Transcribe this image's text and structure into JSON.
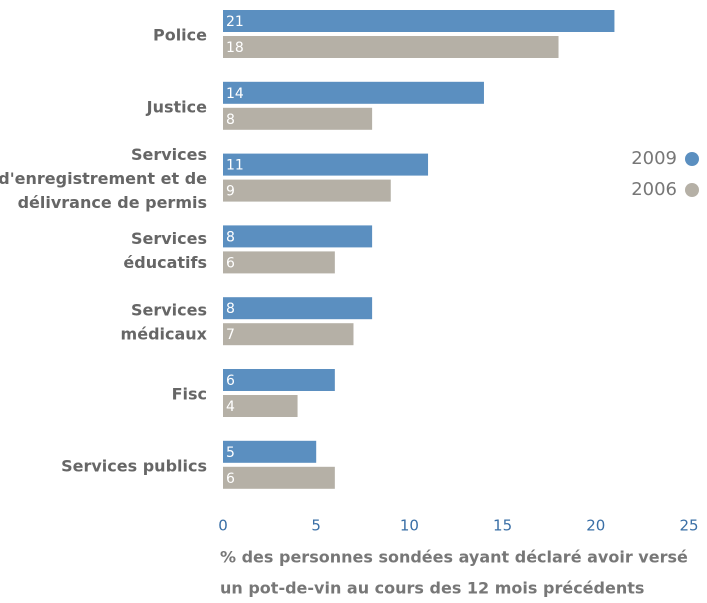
{
  "chart_data": {
    "type": "hbar",
    "categories": [
      [
        "Police"
      ],
      [
        "Justice"
      ],
      [
        "Services",
        "d'enregistrement et de",
        "délivrance de permis"
      ],
      [
        "Services",
        "éducatifs"
      ],
      [
        "Services",
        "médicaux"
      ],
      [
        "Fisc"
      ],
      [
        "Services publics"
      ]
    ],
    "series": [
      {
        "name": "2009",
        "color": "#5b8fc0",
        "values": [
          21,
          14,
          11,
          8,
          8,
          6,
          5
        ]
      },
      {
        "name": "2006",
        "color": "#b5b0a6",
        "values": [
          18,
          8,
          9,
          6,
          7,
          4,
          6
        ]
      }
    ],
    "xlim": [
      0,
      25
    ],
    "xticks": [
      0,
      5,
      10,
      15,
      20,
      25
    ],
    "grid": false,
    "xlabel": [
      "% des personnes sondées ayant déclaré avoir versé",
      "un pot-de-vin au cours des 12 mois précédents"
    ]
  }
}
